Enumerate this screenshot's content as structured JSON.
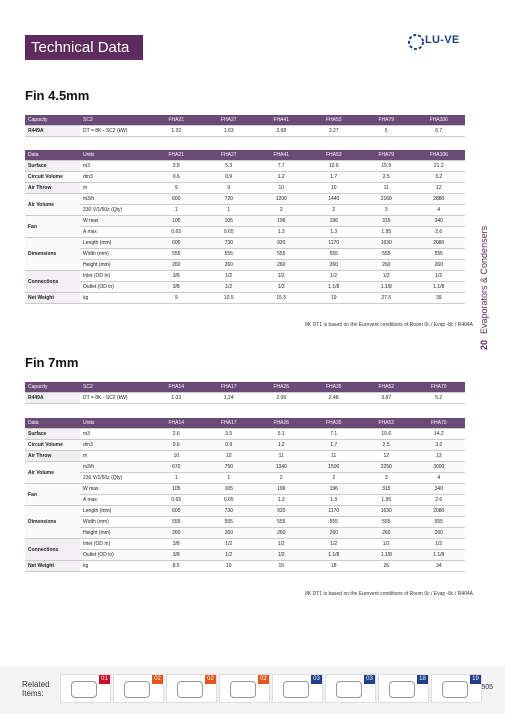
{
  "header": {
    "title": "Technical Data",
    "logo": "LU-VE",
    "side_number": "20",
    "side_text": "Evaporators & Condensers"
  },
  "sections": [
    {
      "title": "Fin 4.5mm",
      "capacity": {
        "header": [
          "Capacity",
          "SC2",
          "FHA21",
          "FHA27",
          "FHA41",
          "FHA53",
          "FHA79",
          "FHA106"
        ],
        "rows": [
          [
            "R449A",
            "DT = 8K - SC2 (kW)",
            "1.32",
            "1.63",
            "2.68",
            "3.27",
            "5",
            "6.7"
          ]
        ]
      },
      "data": {
        "header": [
          "Data",
          "Units",
          "FHA21",
          "FHA27",
          "FHA41",
          "FHA53",
          "FHA79",
          "FHA106"
        ],
        "rows": [
          {
            "label": "Surface",
            "cells": [
              [
                "m3",
                "3.8",
                "5.3",
                "7.7",
                "10.6",
                "15.9",
                "21.2"
              ]
            ]
          },
          {
            "label": "Circuit Volume",
            "cells": [
              [
                "dm3",
                "0.6",
                "0.9",
                "1.2",
                "1.7",
                "2.5",
                "3.2"
              ]
            ]
          },
          {
            "label": "Air Throw",
            "cells": [
              [
                "m",
                "9",
                "9",
                "10",
                "10",
                "11",
                "12"
              ]
            ]
          },
          {
            "label": "Air Volume",
            "cells": [
              [
                "m3/h",
                "600",
                "720",
                "1200",
                "1440",
                "2160",
                "2880"
              ],
              [
                "230 V/1/50z (Qty)",
                "1",
                "1",
                "2",
                "2",
                "3",
                "4"
              ]
            ]
          },
          {
            "label": "Fan",
            "cells": [
              [
                "W max",
                "105",
                "105",
                "196",
                "196",
                "315",
                "340"
              ],
              [
                "A max",
                "0.65",
                "0.65",
                "1.3",
                "1.3",
                "1.95",
                "2.6"
              ]
            ]
          },
          {
            "label": "Dimensions",
            "cells": [
              [
                "Length (mm)",
                "605",
                "730",
                "920",
                "1170",
                "1630",
                "2080"
              ],
              [
                "Width (mm)",
                "555",
                "555",
                "555",
                "555",
                "555",
                "555"
              ],
              [
                "Height (mm)",
                "260",
                "260",
                "260",
                "260",
                "260",
                "260"
              ]
            ]
          },
          {
            "label": "Connections",
            "cells": [
              [
                "Inlet (OD In)",
                "3/8",
                "1/2",
                "1/2",
                "1/2",
                "1/2",
                "1/2"
              ],
              [
                "Outlet (OD in)",
                "3/8",
                "1/2",
                "1/2",
                "1.1/8",
                "1.1/8",
                "1.1/8"
              ]
            ]
          },
          {
            "label": "Net Weight",
            "cells": [
              [
                "kg",
                "9",
                "10.5",
                "15.5",
                "19",
                "27.5",
                "39"
              ]
            ]
          }
        ]
      },
      "note": "8K DT1 is based on the Eurovent conditions of Room 0c / Evap -8c / R404A"
    },
    {
      "title": "Fin 7mm",
      "capacity": {
        "header": [
          "Capacity",
          "SC2",
          "FHA14",
          "FHA17",
          "FHA26",
          "FHA35",
          "FHA52",
          "FHA70"
        ],
        "rows": [
          [
            "R449A",
            "DT = 8K - SC2 (kW)",
            "1.03",
            "1.24",
            "2.06",
            "2.48",
            "3.87",
            "5.2"
          ]
        ]
      },
      "data": {
        "header": [
          "Data",
          "Units",
          "FHA14",
          "FHA17",
          "FHA26",
          "FHA35",
          "FHA52",
          "FHA70"
        ],
        "rows": [
          {
            "label": "Surface",
            "cells": [
              [
                "m3",
                "2.6",
                "3.5",
                "5.1",
                "7.1",
                "10.6",
                "14.2"
              ]
            ]
          },
          {
            "label": "Circuit Volume",
            "cells": [
              [
                "dm3",
                "0.6",
                "0.9",
                "1.2",
                "1.7",
                "2.5",
                "3.2"
              ]
            ]
          },
          {
            "label": "Air Throw",
            "cells": [
              [
                "m",
                "10",
                "10",
                "11",
                "11",
                "12",
                "13"
              ]
            ]
          },
          {
            "label": "Air Volume",
            "cells": [
              [
                "m3/h",
                "670",
                "750",
                "1340",
                "1500",
                "2250",
                "3000"
              ],
              [
                "230 V/1/50z (Qty)",
                "1",
                "1",
                "2",
                "2",
                "3",
                "4"
              ]
            ]
          },
          {
            "label": "Fan",
            "cells": [
              [
                "W max",
                "105",
                "105",
                "196",
                "196",
                "315",
                "340"
              ],
              [
                "A max",
                "0.65",
                "0.65",
                "1.3",
                "1.3",
                "1.95",
                "2.6"
              ]
            ]
          },
          {
            "label": "Dimensions",
            "cells": [
              [
                "Length (mm)",
                "605",
                "730",
                "920",
                "1170",
                "1630",
                "2080"
              ],
              [
                "Width (mm)",
                "555",
                "555",
                "555",
                "555",
                "555",
                "555"
              ],
              [
                "Height (mm)",
                "260",
                "260",
                "260",
                "260",
                "260",
                "260"
              ]
            ]
          },
          {
            "label": "Connections",
            "cells": [
              [
                "Inlet (OD In)",
                "3/8",
                "1/2",
                "1/2",
                "1/2",
                "1/2",
                "1/2"
              ],
              [
                "Outlet (OD in)",
                "3/8",
                "1/2",
                "1/2",
                "1.1/8",
                "1.1/8",
                "1.1/8"
              ]
            ]
          },
          {
            "label": "Net Weight",
            "cells": [
              [
                "kg",
                "8.5",
                "10",
                "15",
                "18",
                "26",
                "34"
              ]
            ]
          }
        ]
      },
      "note": "8K DT1 is based on the Eurovent conditions of Room 0c / Evap -8c / R404A"
    }
  ],
  "footer": {
    "label": "Related Items:",
    "items": [
      "01",
      "02",
      "02",
      "02",
      "03",
      "03",
      "18",
      "19"
    ],
    "page": "505"
  }
}
